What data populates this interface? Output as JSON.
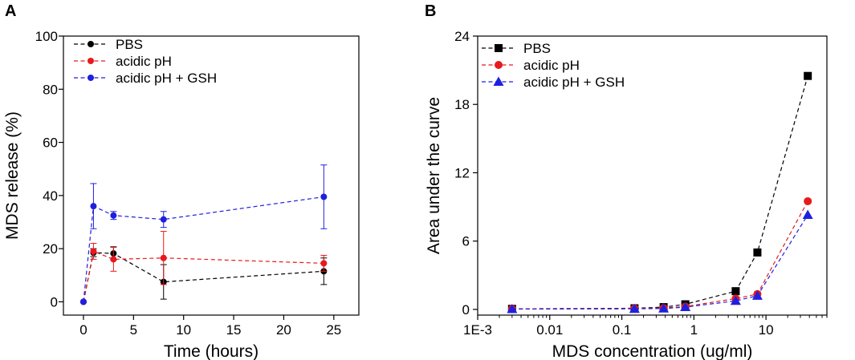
{
  "chart_data": [
    {
      "panel": "A",
      "type": "line",
      "xlabel": "Time (hours)",
      "ylabel": "MDS release (%)",
      "xlim": [
        -2,
        27.5
      ],
      "ylim": [
        -5,
        100
      ],
      "xticks": [
        0,
        5,
        10,
        15,
        20,
        25
      ],
      "yticks": [
        0,
        20,
        40,
        60,
        80,
        100
      ],
      "legend_position": "top-left",
      "series": [
        {
          "name": "PBS",
          "color": "#000000",
          "marker": "circle",
          "x": [
            0,
            1,
            3,
            8,
            24
          ],
          "y": [
            0,
            18.5,
            18.2,
            7.5,
            11.5
          ],
          "err": [
            0,
            1.5,
            2.5,
            6.5,
            5
          ]
        },
        {
          "name": "acidic pH",
          "color": "#e8191c",
          "marker": "circle",
          "x": [
            0,
            1,
            3,
            8,
            24
          ],
          "y": [
            0,
            19,
            16,
            16.5,
            14.5
          ],
          "err": [
            0,
            3,
            4.5,
            10,
            3
          ]
        },
        {
          "name": "acidic pH + GSH",
          "color": "#1f1fe0",
          "marker": "circle",
          "x": [
            0,
            1,
            3,
            8,
            24
          ],
          "y": [
            0,
            36,
            32.5,
            31,
            39.5
          ],
          "err": [
            0,
            8.5,
            1.5,
            3,
            12
          ]
        }
      ]
    },
    {
      "panel": "B",
      "type": "line",
      "xscale": "log",
      "xlabel": "MDS concentration (ug/ml)",
      "ylabel": "Area under the curve",
      "xlim": [
        0.001,
        70
      ],
      "ylim": [
        -0.5,
        24
      ],
      "xticks": [
        0.001,
        0.01,
        0.1,
        1,
        10
      ],
      "xticklabels": [
        "1E-3",
        "0.01",
        "0.1",
        "1",
        "10"
      ],
      "yticks": [
        0,
        6,
        12,
        18,
        24
      ],
      "legend_position": "top-left",
      "series": [
        {
          "name": "PBS",
          "color": "#000000",
          "marker": "square",
          "x": [
            0.003,
            0.15,
            0.38,
            0.76,
            3.8,
            7.6,
            38
          ],
          "y": [
            0.05,
            0.1,
            0.2,
            0.45,
            1.6,
            5,
            20.5
          ]
        },
        {
          "name": "acidic pH",
          "color": "#e8191c",
          "marker": "circle",
          "x": [
            0.003,
            0.15,
            0.38,
            0.76,
            3.8,
            7.6,
            38
          ],
          "y": [
            0.05,
            0.08,
            0.12,
            0.25,
            0.95,
            1.35,
            9.5
          ]
        },
        {
          "name": "acidic pH + GSH",
          "color": "#1f1fe0",
          "marker": "triangle",
          "x": [
            0.003,
            0.15,
            0.38,
            0.76,
            3.8,
            7.6,
            38
          ],
          "y": [
            0.03,
            0.05,
            0.08,
            0.2,
            0.75,
            1.2,
            8.3
          ]
        }
      ]
    }
  ]
}
